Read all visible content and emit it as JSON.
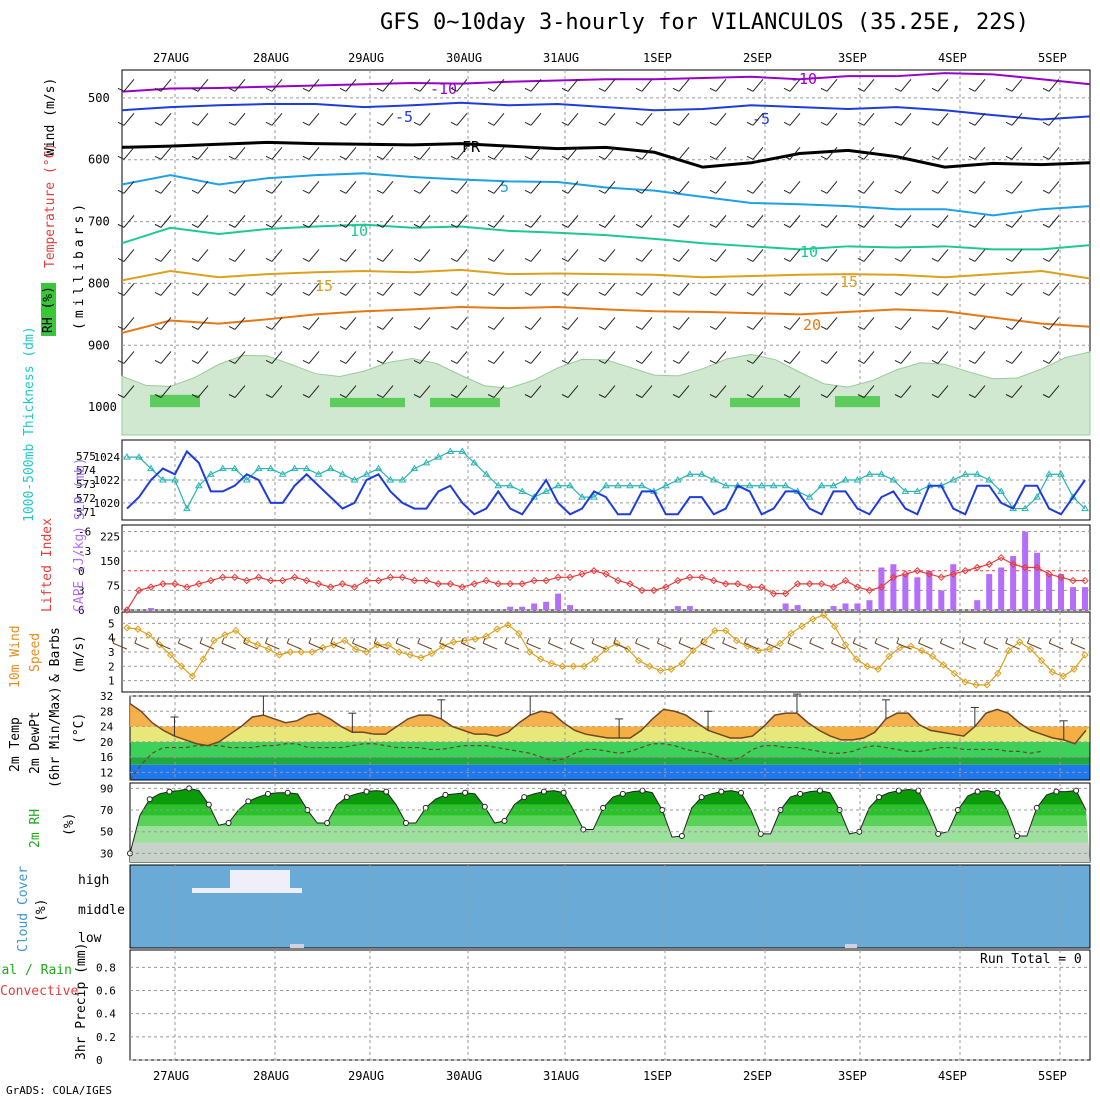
{
  "title": "GFS 0~10day 3-hourly for VILANCULOS (35.25E, 22S)",
  "credit": "GrADS: COLA/IGES",
  "date_labels": [
    "27AUG",
    "28AUG",
    "29AUG",
    "30AUG",
    "31AUG",
    "1SEP",
    "2SEP",
    "3SEP",
    "4SEP",
    "5SEP"
  ],
  "colors": {
    "purple": "#9a00c8",
    "blue": "#1e3cdc",
    "cyan": "#1ea0e6",
    "teal": "#1ec896",
    "orange_light": "#dca01e",
    "orange": "#e67814",
    "magenta": "#dc0096",
    "cyan2": "#28b4b4",
    "red": "#e63c3c",
    "lav": "#b46efa",
    "brown": "#6e4628",
    "ocean": "#6aaad6"
  },
  "panel_labels": {
    "upper": {
      "wind": "Wind (m/s)",
      "temperature": "Temperature (°C)",
      "rh": "RH (%)",
      "millibars": "(millibars)"
    },
    "pressure": {
      "thickness": "1000-500mb Thickness (dm)",
      "slp": "SLP (mb)"
    },
    "stability": {
      "lifted_index": "Lifted Index",
      "cape": "CAPE (J/kg)"
    },
    "wind10": {
      "line1": "10m Wind",
      "line2": "Speed",
      "line3": "& Barbs",
      "units": "(m/s)"
    },
    "temp2m": {
      "line1": "2m Temp",
      "line2": "2m DewPt",
      "line3": "(6hr Min/Max)",
      "units": "(°C)"
    },
    "rh2m": {
      "line1": "2m RH",
      "units": "(%)"
    },
    "cloud": {
      "line1": "Cloud Cover",
      "units": "(%)",
      "levels": [
        "high",
        "middle",
        "low"
      ]
    },
    "precip": {
      "line1": "Total / Rain",
      "line2": "Convective",
      "line3": "3hr Precip (mm)",
      "run_total": "Run Total = 0"
    }
  },
  "chart_data": [
    {
      "type": "heatmap",
      "name": "upper-air-cross-section",
      "y_ticks": [
        500,
        600,
        700,
        800,
        900,
        1000
      ],
      "contour_labels": [
        {
          "text": "-10",
          "color": "purple"
        },
        {
          "text": "-10",
          "color": "purple"
        },
        {
          "text": "-5",
          "color": "blue"
        },
        {
          "text": "-5",
          "color": "blue"
        },
        {
          "text": "FR",
          "color": "black"
        },
        {
          "text": "5",
          "color": "cyan"
        },
        {
          "text": "10",
          "color": "teal"
        },
        {
          "text": "10",
          "color": "teal"
        },
        {
          "text": "15",
          "color": "orange_light"
        },
        {
          "text": "15",
          "color": "orange_light"
        },
        {
          "text": "20",
          "color": "orange"
        }
      ],
      "temp_lines": [
        {
          "label": "-10",
          "color": "purple",
          "pressure": [
            490,
            485,
            484,
            482,
            480,
            478,
            476,
            477,
            474,
            472,
            470,
            470,
            468,
            466,
            470,
            465,
            465,
            460,
            462,
            470,
            478
          ]
        },
        {
          "label": "-5",
          "color": "blue",
          "pressure": [
            520,
            515,
            512,
            510,
            510,
            515,
            512,
            508,
            512,
            510,
            515,
            520,
            518,
            512,
            515,
            518,
            515,
            520,
            528,
            535,
            530
          ]
        },
        {
          "label": "FR",
          "color": "black",
          "pressure": [
            580,
            578,
            575,
            572,
            574,
            575,
            576,
            574,
            578,
            582,
            580,
            588,
            612,
            605,
            590,
            585,
            595,
            612,
            606,
            608,
            605
          ]
        },
        {
          "label": "5",
          "color": "cyan",
          "pressure": [
            640,
            625,
            640,
            630,
            625,
            622,
            628,
            632,
            635,
            636,
            645,
            650,
            660,
            670,
            672,
            675,
            680,
            680,
            690,
            680,
            675
          ]
        },
        {
          "label": "10",
          "color": "teal",
          "pressure": [
            735,
            710,
            720,
            712,
            708,
            705,
            710,
            708,
            715,
            718,
            722,
            728,
            735,
            740,
            745,
            740,
            742,
            740,
            745,
            745,
            738
          ]
        },
        {
          "label": "15",
          "color": "orange_light",
          "pressure": [
            795,
            780,
            790,
            785,
            782,
            780,
            782,
            778,
            785,
            784,
            785,
            786,
            790,
            788,
            786,
            785,
            786,
            790,
            785,
            780,
            792
          ]
        },
        {
          "label": "20",
          "color": "orange",
          "pressure": [
            880,
            860,
            865,
            858,
            850,
            845,
            842,
            838,
            840,
            838,
            842,
            845,
            846,
            848,
            850,
            846,
            842,
            845,
            855,
            865,
            870
          ]
        }
      ]
    },
    {
      "type": "line",
      "name": "slp-thickness",
      "y_left_ticks": [
        571,
        572,
        573,
        574,
        575
      ],
      "y_right_ticks": [
        1020,
        1022,
        1024
      ],
      "series": [
        {
          "name": "1000-500mb Thickness (dm)",
          "color": "cyan2",
          "values": [
            1024,
            1024,
            1023,
            1022,
            1022,
            1019.5,
            1021.5,
            1022.5,
            1023,
            1023,
            1022,
            1023,
            1023,
            1022.5,
            1023,
            1023,
            1022.5,
            1023,
            1022.5,
            1022,
            1022.5,
            1023,
            1022,
            1022,
            1023,
            1023.5,
            1024,
            1024.5,
            1024.5,
            1023.5,
            1022.5,
            1021.5,
            1021.5,
            1021,
            1020.5,
            1021,
            1021.5,
            1021.5,
            1020.5,
            1020.5,
            1021.5,
            1021.5,
            1021.5,
            1021.5,
            1021,
            1021.5,
            1022,
            1022.5,
            1022.5,
            1022,
            1021.5,
            1021.5,
            1021.5,
            1021.5,
            1021.5,
            1021.5,
            1021,
            1020.5,
            1021.5,
            1021.5,
            1022,
            1022,
            1022.5,
            1022.5,
            1022,
            1021,
            1021,
            1021.5,
            1021.5,
            1022,
            1022.5,
            1022.5,
            1022,
            1021,
            1019.5,
            1019.5,
            1020.5,
            1022.5,
            1022.5,
            1020.5,
            1019.5
          ]
        },
        {
          "name": "SLP (mb)",
          "color": "blue",
          "values": [
            1019.5,
            1020.5,
            1022,
            1023,
            1022.5,
            1024.5,
            1023.5,
            1021,
            1021,
            1021.5,
            1022.5,
            1022,
            1020,
            1020,
            1021.5,
            1022.5,
            1021.5,
            1020.5,
            1019.5,
            1020,
            1022,
            1022.5,
            1021,
            1020,
            1019.5,
            1019.5,
            1021,
            1021.5,
            1020,
            1019,
            1019.5,
            1021,
            1019.5,
            1019,
            1020.5,
            1022,
            1020,
            1019,
            1019.5,
            1021,
            1020.5,
            1019,
            1019,
            1021,
            1021,
            1019,
            1019,
            1020.5,
            1020.5,
            1019,
            1019.5,
            1021.5,
            1021,
            1019,
            1019.5,
            1021,
            1021,
            1019.5,
            1019,
            1021,
            1021,
            1019.5,
            1019,
            1020.5,
            1021,
            1019.5,
            1019,
            1021.5,
            1021.5,
            1019.5,
            1019,
            1021.5,
            1021.5,
            1020,
            1019.5,
            1021.5,
            1021.5,
            1019.5,
            1019,
            1020.5,
            1022
          ]
        }
      ]
    },
    {
      "type": "bar",
      "name": "cape-lifted-index",
      "y_left_ticks": [
        6,
        3,
        0,
        -3,
        -6
      ],
      "y_right_ticks": [
        0,
        75,
        150,
        225
      ],
      "series": [
        {
          "name": "Lifted Index",
          "color": "red",
          "values": [
            6,
            3,
            2.5,
            2,
            2,
            2.5,
            2,
            1.5,
            1,
            1,
            1.5,
            1,
            1.5,
            1.5,
            1,
            1.5,
            2,
            2.5,
            2,
            2.5,
            1.5,
            1.5,
            1,
            1,
            1.5,
            1.5,
            2,
            2,
            2.5,
            2,
            1.5,
            2,
            2,
            2,
            1.5,
            1.5,
            1,
            1,
            0.5,
            0,
            0.5,
            1.5,
            2,
            3,
            3,
            2.5,
            1.5,
            1,
            1,
            1.5,
            2,
            2,
            2.5,
            2.5,
            3.5,
            3.5,
            2,
            2,
            2,
            2.5,
            1.5,
            2.5,
            3,
            2.5,
            1,
            0.5,
            0,
            0.5,
            1,
            0.5,
            0,
            -0.5,
            -1,
            -2,
            -1,
            -0.5,
            -0.5,
            0.5,
            1,
            1.5,
            1.5
          ]
        },
        {
          "name": "CAPE (J/kg)",
          "color": "lav",
          "values": [
            0,
            0,
            6,
            0,
            0,
            0,
            0,
            0,
            0,
            0,
            0,
            0,
            0,
            0,
            0,
            0,
            0,
            0,
            0,
            0,
            0,
            0,
            0,
            0,
            0,
            0,
            0,
            0,
            0,
            0,
            0,
            0,
            10,
            10,
            20,
            25,
            50,
            15,
            0,
            0,
            0,
            0,
            0,
            0,
            0,
            0,
            12,
            12,
            0,
            0,
            0,
            0,
            0,
            0,
            0,
            20,
            15,
            0,
            0,
            12,
            20,
            20,
            30,
            130,
            140,
            110,
            100,
            120,
            60,
            140,
            0,
            30,
            110,
            130,
            165,
            240,
            175,
            110,
            110,
            70,
            70
          ]
        }
      ]
    },
    {
      "type": "line",
      "name": "wind-10m",
      "y_ticks": [
        1,
        2,
        3,
        4,
        5
      ],
      "series": [
        {
          "name": "Speed",
          "color": "orange_light",
          "values": [
            4.7,
            4.6,
            4.2,
            3.5,
            2.8,
            2,
            1.3,
            2.5,
            3.8,
            4.2,
            4.5,
            3.8,
            3.5,
            3.2,
            2.8,
            3,
            3,
            3,
            3.3,
            3.5,
            3.8,
            3.2,
            3,
            3.5,
            3.5,
            3,
            2.8,
            2.6,
            2.9,
            3.4,
            3.7,
            3.8,
            3.9,
            4.1,
            4.6,
            4.9,
            4.3,
            3,
            2.5,
            2.2,
            2,
            2,
            2,
            2.5,
            3.2,
            3.6,
            3.2,
            2.4,
            2,
            1.7,
            1.8,
            2.2,
            3.1,
            3.7,
            4.5,
            4.5,
            3.8,
            3.4,
            3.1,
            3.2,
            3.6,
            4.3,
            4.8,
            5.3,
            5.6,
            4.8,
            3.5,
            2.5,
            2,
            1.8,
            2.7,
            3.3,
            3.4,
            3.1,
            2.7,
            2.1,
            1.5,
            0.9,
            0.7,
            0.7,
            1.5,
            3.1,
            3.7,
            3.2,
            2.4,
            1.6,
            1.3,
            1.8,
            2.8
          ]
        }
      ]
    },
    {
      "type": "area",
      "name": "temp-2m",
      "y_ticks": [
        12,
        16,
        20,
        24,
        28,
        32
      ],
      "series": [
        {
          "name": "2m Temp",
          "color": "brown",
          "values": [
            30,
            28,
            25,
            23,
            21.5,
            20.5,
            19.5,
            19,
            20,
            22,
            24,
            26.5,
            27,
            26,
            25,
            25.5,
            27,
            27.5,
            26,
            24,
            22.5,
            22.5,
            22,
            22,
            24,
            26,
            27,
            27,
            26,
            24,
            23,
            22,
            22,
            21.5,
            22.5,
            25,
            27,
            28,
            27.5,
            25,
            23,
            22,
            21.5,
            21,
            21,
            21,
            23,
            26,
            28.5,
            28,
            27,
            25,
            23,
            22,
            21,
            21,
            21.5,
            24,
            27,
            27.5,
            27.5,
            25,
            23,
            21.5,
            20.5,
            20.5,
            21,
            22.5,
            26,
            27.5,
            27.5,
            24.5,
            23,
            22.5,
            22,
            21.5,
            24,
            27.5,
            28.5,
            27.5,
            25,
            23,
            22,
            21,
            20.5,
            19.5,
            23
          ]
        },
        {
          "name": "2m DewPt",
          "color": "brown",
          "values": [
            10,
            14,
            17,
            18.5,
            18.5,
            18.5,
            19,
            19,
            19,
            18.5,
            18.5,
            18.5,
            19,
            19,
            19.5,
            19.5,
            18.5,
            18.5,
            18.5,
            18.5,
            19,
            19.5,
            19.5,
            19,
            18.5,
            18.5,
            18.5,
            18,
            18,
            18.5,
            19,
            19,
            19,
            18.5,
            18,
            17.5,
            17,
            16,
            15,
            15.5,
            17,
            18,
            18,
            17.5,
            17,
            17.5,
            18.5,
            19.5,
            19.5,
            19,
            18,
            17.5,
            17,
            16,
            15,
            16,
            18,
            19,
            19,
            18.5,
            18.5,
            18,
            17.5,
            17,
            17,
            17.5,
            18.5,
            19,
            18.5,
            18,
            17.5,
            17.5,
            18,
            18.5,
            18.5,
            18,
            18,
            18,
            18,
            17.5,
            17.5,
            17,
            17.5
          ]
        }
      ]
    },
    {
      "type": "area",
      "name": "rh-2m",
      "y_ticks": [
        30,
        50,
        70,
        90
      ],
      "series": [
        {
          "name": "2m RH",
          "color": "green",
          "values": [
            30,
            65,
            80,
            85,
            87,
            88,
            90,
            88,
            75,
            56,
            58,
            70,
            78,
            82,
            85,
            86,
            86,
            85,
            70,
            58,
            58,
            75,
            82,
            85,
            87,
            88,
            87,
            75,
            58,
            58,
            72,
            80,
            84,
            85,
            86,
            85,
            73,
            58,
            60,
            75,
            82,
            85,
            87,
            88,
            86,
            70,
            52,
            52,
            72,
            82,
            85,
            87,
            88,
            86,
            70,
            45,
            46,
            72,
            82,
            85,
            87,
            88,
            86,
            70,
            48,
            48,
            70,
            82,
            85,
            87,
            88,
            86,
            70,
            48,
            50,
            72,
            82,
            86,
            88,
            89,
            88,
            70,
            48,
            50,
            70,
            83,
            87,
            88,
            86,
            70,
            46,
            46,
            72,
            84,
            87,
            87,
            88,
            70
          ]
        }
      ]
    },
    {
      "type": "heatmap",
      "name": "cloud-cover",
      "y_labels": [
        "high",
        "middle",
        "low"
      ]
    },
    {
      "type": "bar",
      "name": "precip-3hr",
      "y_ticks": [
        0,
        0.2,
        0.4,
        0.6,
        0.8
      ],
      "series": [
        {
          "name": "Total / Rain",
          "color": "green",
          "values": []
        },
        {
          "name": "Convective",
          "color": "red",
          "values": []
        }
      ]
    }
  ]
}
